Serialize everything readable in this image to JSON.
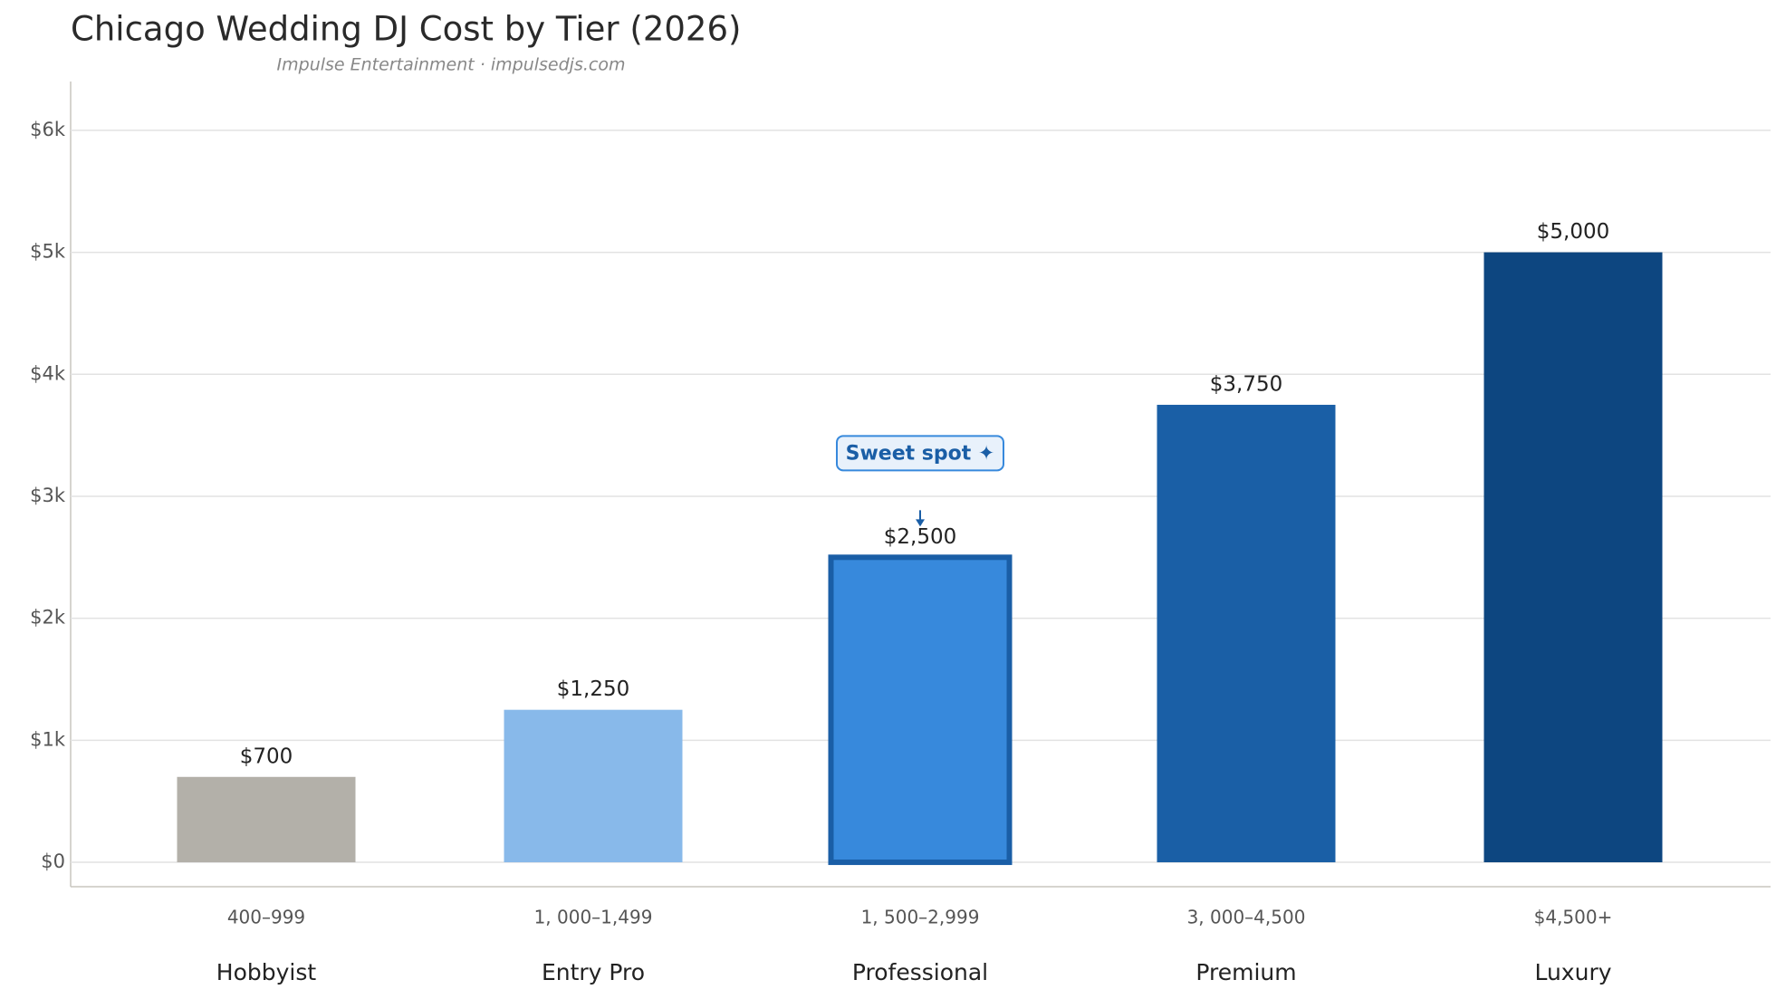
{
  "chart_data": {
    "type": "bar",
    "title": "Chicago Wedding DJ Cost by Tier (2026)",
    "subtitle": "Impulse Entertainment · impulsedjs.com",
    "categories": [
      "Hobbyist",
      "Entry Pro",
      "Professional",
      "Premium",
      "Luxury"
    ],
    "ranges": [
      "400–999",
      "1, 000–1,499",
      "1, 500–2,999",
      "3, 000–4,500",
      "$4,500+"
    ],
    "values": [
      700,
      1250,
      2500,
      3750,
      5000
    ],
    "value_labels": [
      "$700",
      "$1,250",
      "$2,500",
      "$3,750",
      "$5,000"
    ],
    "colors": [
      "#b3b0a9",
      "#88b9ea",
      "#3789dc",
      "#1a5fa6",
      "#0d4680"
    ],
    "annotation": {
      "text": "Sweet spot ✦",
      "category": "Professional",
      "color": "#1a5ea6"
    },
    "ylim": [
      -200,
      6400
    ],
    "yticks": [
      {
        "value": 0,
        "label": "$0"
      },
      {
        "value": 1000,
        "label": "$1k"
      },
      {
        "value": 2000,
        "label": "$2k"
      },
      {
        "value": 3000,
        "label": "$3k"
      },
      {
        "value": 4000,
        "label": "$4k"
      },
      {
        "value": 5000,
        "label": "$5k"
      },
      {
        "value": 6000,
        "label": "$6k"
      }
    ],
    "grid": true
  }
}
